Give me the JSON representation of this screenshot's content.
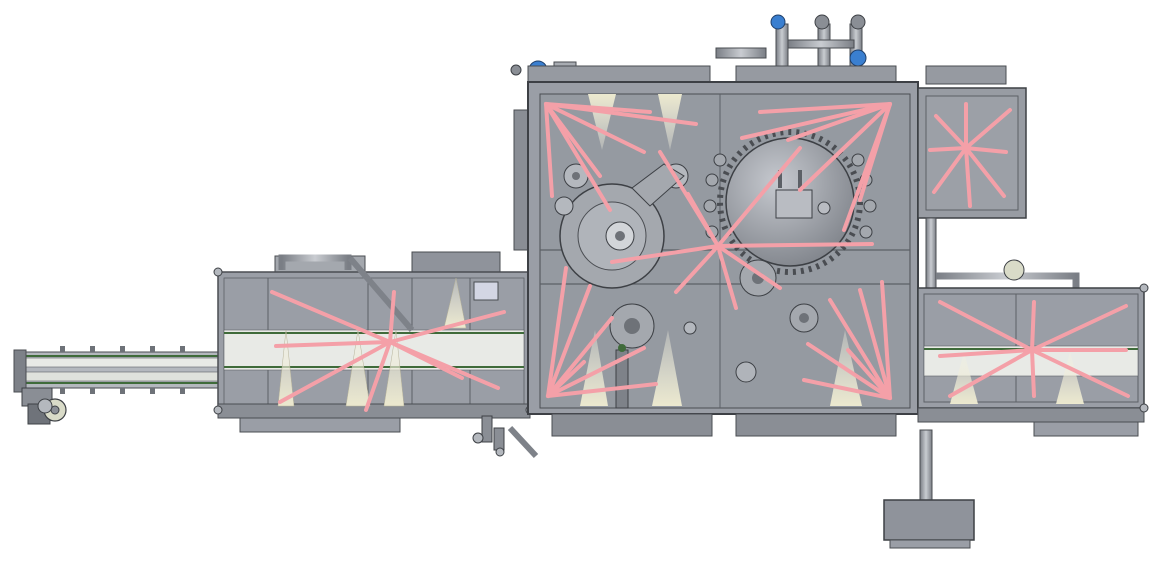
{
  "colors": {
    "background": "#ffffff",
    "frame_fill": "#9a9ea6",
    "panel_fill": "#8f939b",
    "edge": "#4a4d52",
    "dark_detail": "#5c6066",
    "conveyor_belt": "#e8eae6",
    "conveyor_stripe": "#3f6b3a",
    "spray_cone": "#e9e6cc",
    "annotation_line": "#f4a0a8",
    "valve_actuator": "#3a7fd0"
  },
  "icons": {
    "valve": "valve-actuator-icon",
    "fan": "fan-wheel-icon",
    "drive": "motor-drive-icon"
  }
}
